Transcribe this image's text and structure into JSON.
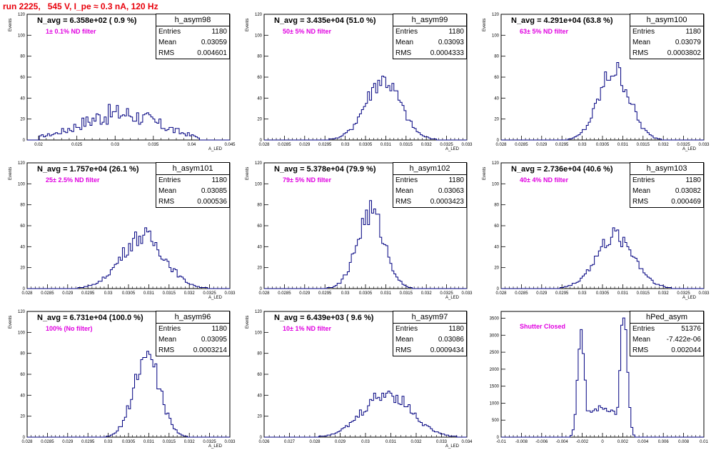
{
  "header": "run 2225,   545 V, I_pe ≈ 0.3 nA, 120 Hz",
  "charts": [
    {
      "stats_name": "h_asym98",
      "title": "N_avg = 6.358e+02 ( 0.9 %)",
      "note": "1± 0.1% ND filter",
      "entries": "1180",
      "mean": "0.03059",
      "rms": "0.004601",
      "xmin": 0.0185,
      "xmax": 0.045,
      "ymin": 0,
      "ymax": 120,
      "xticks": [
        "0.02",
        "0.025",
        "0.03",
        "0.035",
        "0.04",
        "0.045"
      ],
      "xtickvals": [
        0.02,
        0.025,
        0.03,
        0.035,
        0.04,
        0.045
      ],
      "yticks": [
        "0",
        "20",
        "40",
        "60",
        "80",
        "100",
        "120"
      ],
      "ytickvals": [
        0,
        20,
        40,
        60,
        80,
        100,
        120
      ],
      "dist": {
        "type": "flat",
        "center": 0.0306,
        "sigma": 0.0046,
        "peak": 28,
        "lo": 0.02,
        "hi": 0.041
      },
      "nbins": 100
    },
    {
      "stats_name": "h_asym99",
      "title": "N_avg = 3.435e+04 (51.0 %)",
      "note": "50± 5% ND filter",
      "entries": "1180",
      "mean": "0.03093",
      "rms": "0.0004333",
      "xmin": 0.028,
      "xmax": 0.033,
      "ymin": 0,
      "ymax": 120,
      "xticks": [
        "0.028",
        "0.0285",
        "0.029",
        "0.0295",
        "0.03",
        "0.0305",
        "0.031",
        "0.0315",
        "0.032",
        "0.0325",
        "0.033"
      ],
      "xtickvals": [
        0.028,
        0.0285,
        0.029,
        0.0295,
        0.03,
        0.0305,
        0.031,
        0.0315,
        0.032,
        0.0325,
        0.033
      ],
      "yticks": [
        "0",
        "20",
        "40",
        "60",
        "80",
        "100",
        "120"
      ],
      "ytickvals": [
        0,
        20,
        40,
        60,
        80,
        100,
        120
      ],
      "dist": {
        "type": "gauss",
        "center": 0.03093,
        "sigma": 0.00043,
        "peak": 58
      },
      "nbins": 100
    },
    {
      "stats_name": "h_asym100",
      "title": "N_avg = 4.291e+04 (63.8 %)",
      "note": "63± 5% ND filter",
      "entries": "1180",
      "mean": "0.03079",
      "rms": "0.0003802",
      "xmin": 0.028,
      "xmax": 0.033,
      "ymin": 0,
      "ymax": 120,
      "xticks": [
        "0.028",
        "0.0285",
        "0.029",
        "0.0295",
        "0.03",
        "0.0305",
        "0.031",
        "0.0315",
        "0.032",
        "0.0325",
        "0.033"
      ],
      "xtickvals": [
        0.028,
        0.0285,
        0.029,
        0.0295,
        0.03,
        0.0305,
        0.031,
        0.0315,
        0.032,
        0.0325,
        0.033
      ],
      "yticks": [
        "0",
        "20",
        "40",
        "60",
        "80",
        "100",
        "120"
      ],
      "ytickvals": [
        0,
        20,
        40,
        60,
        80,
        100,
        120
      ],
      "dist": {
        "type": "gauss",
        "center": 0.03079,
        "sigma": 0.00038,
        "peak": 66
      },
      "nbins": 100
    },
    {
      "stats_name": "h_asym101",
      "title": "N_avg = 1.757e+04 (26.1 %)",
      "note": "25± 2.5% ND filter",
      "entries": "1180",
      "mean": "0.03085",
      "rms": "0.000536",
      "xmin": 0.028,
      "xmax": 0.033,
      "ymin": 0,
      "ymax": 120,
      "xticks": [
        "0.028",
        "0.0285",
        "0.029",
        "0.0295",
        "0.03",
        "0.0305",
        "0.031",
        "0.0315",
        "0.032",
        "0.0325",
        "0.033"
      ],
      "xtickvals": [
        0.028,
        0.0285,
        0.029,
        0.0295,
        0.03,
        0.0305,
        0.031,
        0.0315,
        0.032,
        0.0325,
        0.033
      ],
      "yticks": [
        "0",
        "20",
        "40",
        "60",
        "80",
        "100",
        "120"
      ],
      "ytickvals": [
        0,
        20,
        40,
        60,
        80,
        100,
        120
      ],
      "dist": {
        "type": "gauss",
        "center": 0.03085,
        "sigma": 0.000536,
        "peak": 50
      },
      "nbins": 100
    },
    {
      "stats_name": "h_asym102",
      "title": "N_avg = 5.378e+04 (79.9 %)",
      "note": "79± 5% ND filter",
      "entries": "1180",
      "mean": "0.03063",
      "rms": "0.0003423",
      "xmin": 0.028,
      "xmax": 0.033,
      "ymin": 0,
      "ymax": 120,
      "xticks": [
        "0.028",
        "0.0285",
        "0.029",
        "0.0295",
        "0.03",
        "0.0305",
        "0.031",
        "0.0315",
        "0.032",
        "0.0325",
        "0.033"
      ],
      "xtickvals": [
        0.028,
        0.0285,
        0.029,
        0.0295,
        0.03,
        0.0305,
        0.031,
        0.0315,
        0.032,
        0.0325,
        0.033
      ],
      "yticks": [
        "0",
        "20",
        "40",
        "60",
        "80",
        "100",
        "120"
      ],
      "ytickvals": [
        0,
        20,
        40,
        60,
        80,
        100,
        120
      ],
      "dist": {
        "type": "gauss",
        "center": 0.03063,
        "sigma": 0.00034,
        "peak": 72
      },
      "nbins": 100
    },
    {
      "stats_name": "h_asym103",
      "title": "N_avg = 2.736e+04 (40.6 %)",
      "note": "40± 4% ND filter",
      "entries": "1180",
      "mean": "0.03082",
      "rms": "0.000469",
      "xmin": 0.028,
      "xmax": 0.033,
      "ymin": 0,
      "ymax": 120,
      "xticks": [
        "0.028",
        "0.0285",
        "0.029",
        "0.0295",
        "0.03",
        "0.0305",
        "0.031",
        "0.0315",
        "0.032",
        "0.0325",
        "0.033"
      ],
      "xtickvals": [
        0.028,
        0.0285,
        0.029,
        0.0295,
        0.03,
        0.0305,
        0.031,
        0.0315,
        0.032,
        0.0325,
        0.033
      ],
      "yticks": [
        "0",
        "20",
        "40",
        "60",
        "80",
        "100",
        "120"
      ],
      "ytickvals": [
        0,
        20,
        40,
        60,
        80,
        100,
        120
      ],
      "dist": {
        "type": "gauss",
        "center": 0.03082,
        "sigma": 0.00047,
        "peak": 50
      },
      "nbins": 100
    },
    {
      "stats_name": "h_asym96",
      "title": "N_avg = 6.731e+04 (100.0 %)",
      "note": "100% (No filter)",
      "entries": "1180",
      "mean": "0.03095",
      "rms": "0.0003214",
      "xmin": 0.028,
      "xmax": 0.033,
      "ymin": 0,
      "ymax": 120,
      "xticks": [
        "0.028",
        "0.0285",
        "0.029",
        "0.0295",
        "0.03",
        "0.0305",
        "0.031",
        "0.0315",
        "0.032",
        "0.0325",
        "0.033"
      ],
      "xtickvals": [
        0.028,
        0.0285,
        0.029,
        0.0295,
        0.03,
        0.0305,
        0.031,
        0.0315,
        0.032,
        0.0325,
        0.033
      ],
      "yticks": [
        "0",
        "20",
        "40",
        "60",
        "80",
        "100",
        "120"
      ],
      "ytickvals": [
        0,
        20,
        40,
        60,
        80,
        100,
        120
      ],
      "dist": {
        "type": "gauss",
        "center": 0.03095,
        "sigma": 0.00032,
        "peak": 78
      },
      "nbins": 100
    },
    {
      "stats_name": "h_asym97",
      "title": "N_avg = 6.439e+03 ( 9.6 %)",
      "note": "10± 1% ND filter",
      "entries": "1180",
      "mean": "0.03086",
      "rms": "0.0009434",
      "xmin": 0.026,
      "xmax": 0.034,
      "ymin": 0,
      "ymax": 120,
      "xticks": [
        "0.026",
        "0.027",
        "0.028",
        "0.029",
        "0.03",
        "0.031",
        "0.032",
        "0.033",
        "0.034"
      ],
      "xtickvals": [
        0.026,
        0.027,
        0.028,
        0.029,
        0.03,
        0.031,
        0.032,
        0.033,
        0.034
      ],
      "yticks": [
        "0",
        "20",
        "40",
        "60",
        "80",
        "100",
        "120"
      ],
      "ytickvals": [
        0,
        20,
        40,
        60,
        80,
        100,
        120
      ],
      "dist": {
        "type": "gauss",
        "center": 0.03086,
        "sigma": 0.00094,
        "peak": 42
      },
      "nbins": 100
    },
    {
      "stats_name": "hPed_asym",
      "title": "",
      "note": "Shutter Closed",
      "entries": "51376",
      "mean": "-7.422e-06",
      "rms": "0.002044",
      "xmin": -0.01,
      "xmax": 0.01,
      "ymin": 0,
      "ymax": 3700,
      "xticks": [
        "-0.01",
        "-0.008",
        "-0.006",
        "-0.004",
        "-0.002",
        "0",
        "0.002",
        "0.004",
        "0.006",
        "0.008",
        "0.01"
      ],
      "xtickvals": [
        -0.01,
        -0.008,
        -0.006,
        -0.004,
        -0.002,
        0,
        0.002,
        0.004,
        0.006,
        0.008,
        0.01
      ],
      "yticks": [
        "0",
        "500",
        "1000",
        "1500",
        "2000",
        "2500",
        "3000",
        "3500"
      ],
      "ytickvals": [
        0,
        500,
        1000,
        1500,
        2000,
        2500,
        3000,
        3500
      ],
      "dist": {
        "type": "bimodal",
        "c1": -0.0021,
        "c2": 0.0021,
        "s": 0.00035,
        "peak1": 3150,
        "peak2": 3600,
        "base": 750
      },
      "nbins": 100
    }
  ],
  "chart_data": [
    {
      "type": "bar",
      "title": "N_avg = 6.358e+02 ( 0.9 %)",
      "xlabel": "A_LED",
      "ylabel": "Events",
      "xlim": [
        0.0185,
        0.045
      ],
      "ylim": [
        0,
        120
      ]
    },
    {
      "type": "bar",
      "title": "N_avg = 3.435e+04 (51.0 %)",
      "xlabel": "A_LED",
      "ylabel": "Events",
      "xlim": [
        0.028,
        0.033
      ],
      "ylim": [
        0,
        120
      ]
    },
    {
      "type": "bar",
      "title": "N_avg = 4.291e+04 (63.8 %)",
      "xlabel": "A_LED",
      "ylabel": "Events",
      "xlim": [
        0.028,
        0.033
      ],
      "ylim": [
        0,
        120
      ]
    },
    {
      "type": "bar",
      "title": "N_avg = 1.757e+04 (26.1 %)",
      "xlabel": "A_LED",
      "ylabel": "Events",
      "xlim": [
        0.028,
        0.033
      ],
      "ylim": [
        0,
        120
      ]
    },
    {
      "type": "bar",
      "title": "N_avg = 5.378e+04 (79.9 %)",
      "xlabel": "A_LED",
      "ylabel": "Events",
      "xlim": [
        0.028,
        0.033
      ],
      "ylim": [
        0,
        120
      ]
    },
    {
      "type": "bar",
      "title": "N_avg = 2.736e+04 (40.6 %)",
      "xlabel": "A_LED",
      "ylabel": "Events",
      "xlim": [
        0.028,
        0.033
      ],
      "ylim": [
        0,
        120
      ]
    },
    {
      "type": "bar",
      "title": "N_avg = 6.731e+04 (100.0 %)",
      "xlabel": "A_LED",
      "ylabel": "Events",
      "xlim": [
        0.028,
        0.033
      ],
      "ylim": [
        0,
        120
      ]
    },
    {
      "type": "bar",
      "title": "N_avg = 6.439e+03 ( 9.6 %)",
      "xlabel": "A_LED",
      "ylabel": "Events",
      "xlim": [
        0.026,
        0.034
      ],
      "ylim": [
        0,
        120
      ]
    },
    {
      "type": "bar",
      "title": "",
      "xlabel": "",
      "ylabel": "",
      "xlim": [
        -0.01,
        0.01
      ],
      "ylim": [
        0,
        3700
      ]
    }
  ],
  "axis_labels": {
    "y": "Events",
    "x": "A_LED"
  },
  "stats_labels": {
    "entries": "Entries",
    "mean": "Mean",
    "rms": "RMS"
  },
  "colors": {
    "line": "#000080",
    "header": "#e8000b",
    "note": "#e000e0"
  }
}
